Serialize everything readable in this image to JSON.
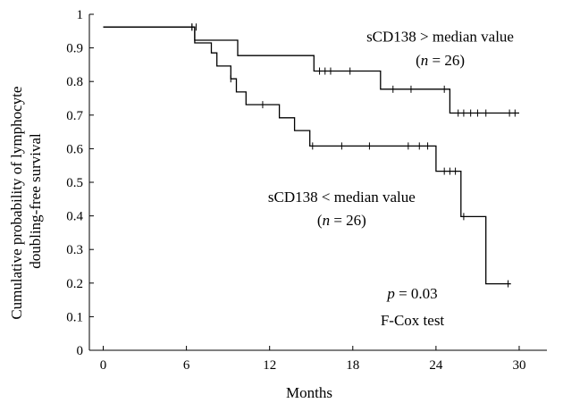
{
  "chart_data": {
    "type": "line",
    "subtype": "kaplan-meier",
    "title": "",
    "xlabel": "Months",
    "ylabel_lines": [
      "Cumulative probability of lymphocyte",
      "doubling-free survival"
    ],
    "xlim": [
      -1,
      32
    ],
    "ylim": [
      0,
      1
    ],
    "x_ticks": [
      0,
      6,
      12,
      18,
      24,
      30
    ],
    "y_ticks": [
      0,
      0.1,
      0.2,
      0.3,
      0.4,
      0.5,
      0.6,
      0.7,
      0.8,
      0.9,
      1
    ],
    "y_tick_labels": [
      "0",
      "0.1",
      "0.2",
      "0.3",
      "0.4",
      "0.5",
      "0.6",
      "0.7",
      "0.8",
      "0.9",
      "1"
    ],
    "grid": false,
    "series": [
      {
        "steps": [
          [
            0,
            0.962
          ],
          [
            6.6,
            0.923
          ],
          [
            9.7,
            0.877
          ],
          [
            15.2,
            0.831
          ],
          [
            20.0,
            0.777
          ],
          [
            25.0,
            0.706
          ],
          [
            30.0,
            0.706
          ]
        ],
        "censored": [
          [
            6.4,
            0.962
          ],
          [
            6.7,
            0.962
          ],
          [
            15.6,
            0.831
          ],
          [
            16.0,
            0.831
          ],
          [
            16.4,
            0.831
          ],
          [
            17.8,
            0.831
          ],
          [
            20.9,
            0.777
          ],
          [
            22.2,
            0.777
          ],
          [
            24.6,
            0.777
          ],
          [
            25.6,
            0.706
          ],
          [
            26.0,
            0.706
          ],
          [
            26.5,
            0.706
          ],
          [
            27.0,
            0.706
          ],
          [
            27.6,
            0.706
          ],
          [
            29.3,
            0.706
          ],
          [
            29.7,
            0.706
          ]
        ]
      },
      {
        "steps": [
          [
            0,
            0.962
          ],
          [
            6.6,
            0.915
          ],
          [
            7.8,
            0.885
          ],
          [
            8.2,
            0.846
          ],
          [
            9.2,
            0.808
          ],
          [
            9.6,
            0.769
          ],
          [
            10.3,
            0.731
          ],
          [
            12.7,
            0.692
          ],
          [
            13.8,
            0.654
          ],
          [
            14.9,
            0.608
          ],
          [
            24.0,
            0.533
          ],
          [
            25.8,
            0.398
          ],
          [
            27.6,
            0.198
          ],
          [
            29.4,
            0.198
          ]
        ],
        "censored": [
          [
            6.4,
            0.962
          ],
          [
            9.2,
            0.808
          ],
          [
            11.5,
            0.731
          ],
          [
            15.1,
            0.608
          ],
          [
            17.2,
            0.608
          ],
          [
            19.2,
            0.608
          ],
          [
            22.0,
            0.608
          ],
          [
            22.8,
            0.608
          ],
          [
            23.4,
            0.608
          ],
          [
            24.6,
            0.533
          ],
          [
            25.0,
            0.533
          ],
          [
            25.4,
            0.533
          ],
          [
            26.0,
            0.398
          ],
          [
            29.2,
            0.198
          ]
        ]
      }
    ],
    "annotations": [
      {
        "text": "sCD138 > median value",
        "x": 24.3,
        "y": 0.935
      },
      {
        "text": "(n = 26)",
        "x": 24.3,
        "y": 0.865
      },
      {
        "text": "sCD138 < median value",
        "x": 17.2,
        "y": 0.458
      },
      {
        "text": "(n = 26)",
        "x": 17.2,
        "y": 0.388
      },
      {
        "text": "p = 0.03",
        "x": 22.3,
        "y": 0.17
      },
      {
        "text": "F-Cox test",
        "x": 22.3,
        "y": 0.09
      }
    ]
  }
}
